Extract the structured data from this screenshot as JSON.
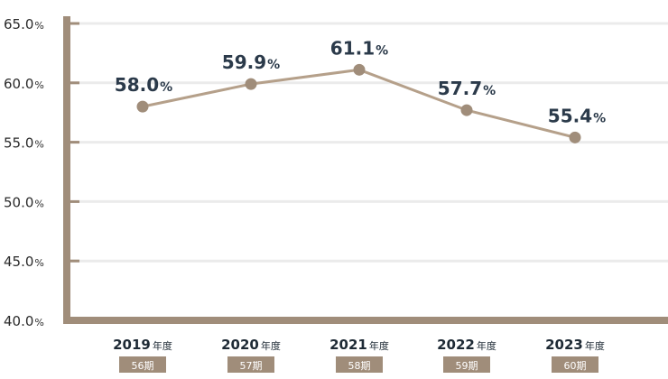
{
  "chart_data": {
    "type": "line",
    "categories": [
      "2019",
      "2020",
      "2021",
      "2022",
      "2023"
    ],
    "category_suffix": "年度",
    "periods": [
      "56期",
      "57期",
      "58期",
      "59期",
      "60期"
    ],
    "values": [
      58.0,
      59.9,
      61.1,
      57.7,
      55.4
    ],
    "value_unit": "%",
    "ylim": [
      40.0,
      65.0
    ],
    "yticks": [
      40.0,
      45.0,
      50.0,
      55.0,
      60.0,
      65.0
    ],
    "ytick_labels": [
      "40.0",
      "45.0",
      "50.0",
      "55.0",
      "60.0",
      "65.0"
    ],
    "grid": true,
    "colors": {
      "line": "#b5a08a",
      "marker": "#a08d7a",
      "axis": "#a08d7a",
      "grid": "#ebebeb",
      "period_box": "#a08d7a"
    }
  }
}
